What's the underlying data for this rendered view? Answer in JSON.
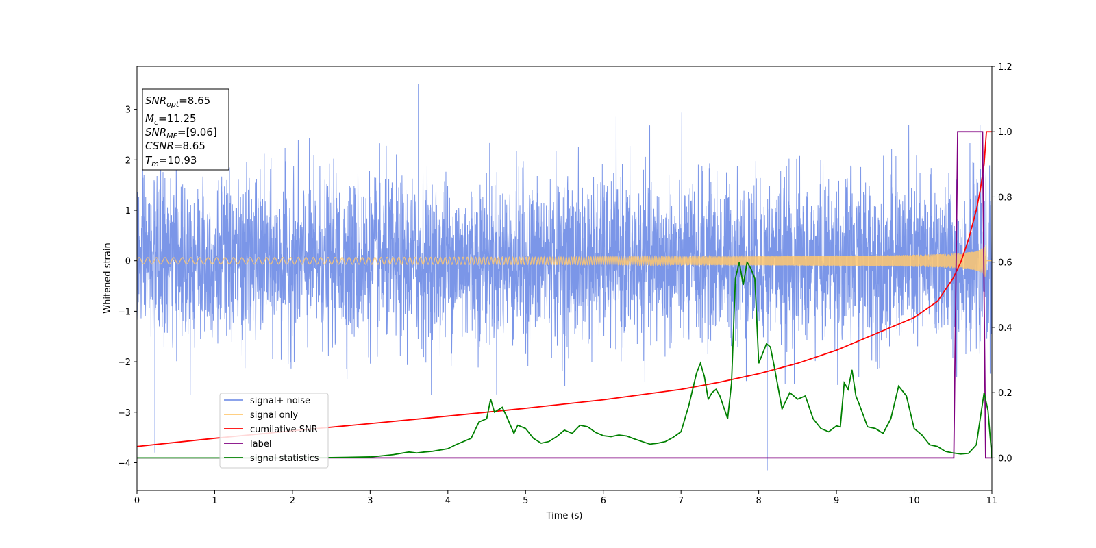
{
  "chart_data": {
    "type": "line",
    "xlabel": "Time (s)",
    "ylabel": "Whitened strain",
    "xlim": [
      0,
      11
    ],
    "ylim_left": [
      -4.55,
      3.85
    ],
    "ylim_right": [
      -0.1,
      1.2
    ],
    "x_ticks": [
      0,
      1,
      2,
      3,
      4,
      5,
      6,
      7,
      8,
      9,
      10,
      11
    ],
    "x_tick_labels": [
      "0",
      "1",
      "2",
      "3",
      "4",
      "5",
      "6",
      "7",
      "8",
      "9",
      "10",
      "11"
    ],
    "y_left_ticks": [
      -4,
      -3,
      -2,
      -1,
      0,
      1,
      2,
      3
    ],
    "y_left_tick_labels": [
      "−4",
      "−3",
      "−2",
      "−1",
      "0",
      "1",
      "2",
      "3"
    ],
    "y_right_ticks": [
      0.0,
      0.2,
      0.4,
      0.6,
      0.8,
      1.0,
      1.2
    ],
    "y_right_tick_labels": [
      "0.0",
      "0.2",
      "0.4",
      "0.6",
      "0.8",
      "1.0",
      "1.2"
    ],
    "info_box": {
      "snr_opt": {
        "name": "SNR",
        "sub": "opt",
        "value": "=8.65"
      },
      "mc": {
        "name": "M",
        "sub": "c",
        "value": "=11.25"
      },
      "snr_mf": {
        "name": "SNR",
        "sub": "MF",
        "value": "=[9.06]"
      },
      "csnr": {
        "name": "CSNR",
        "value": "=8.65"
      },
      "tm": {
        "name": "T",
        "sub": "m",
        "value": "=10.93"
      }
    },
    "legend": {
      "position": "lower-left",
      "entries": [
        {
          "label": "signal+ noise",
          "color": "#7b96e8"
        },
        {
          "label": "signal only",
          "color": "#ffc870"
        },
        {
          "label": "cumilative SNR",
          "color": "#ff0000"
        },
        {
          "label": "label",
          "color": "#800080"
        },
        {
          "label": "signal statistics",
          "color": "#008000"
        }
      ]
    },
    "series": [
      {
        "name": "signal+ noise",
        "axis": "left",
        "color": "#7b96e8",
        "style": "dense gaussian noise, sigma ~0.8",
        "range": [
          -4.15,
          3.5
        ],
        "notable_extremes": [
          [
            0.23,
            -3.8
          ],
          [
            3.62,
            3.5
          ],
          [
            8.11,
            -4.15
          ]
        ]
      },
      {
        "name": "signal only",
        "axis": "left",
        "color": "#ffc870",
        "style": "chirp",
        "t_merger": 10.93,
        "amplitude_at_10s": 0.12,
        "amplitude_near_merger": 0.55
      },
      {
        "name": "cumilative SNR",
        "axis": "right",
        "color": "#ff0000",
        "x": [
          0,
          1,
          2,
          3,
          4,
          5,
          6,
          7,
          7.5,
          8,
          8.5,
          9,
          9.5,
          10,
          10.3,
          10.5,
          10.6,
          10.7,
          10.8,
          10.85,
          10.9,
          10.93,
          11
        ],
        "y": [
          0.035,
          0.06,
          0.083,
          0.105,
          0.128,
          0.152,
          0.178,
          0.21,
          0.232,
          0.258,
          0.29,
          0.33,
          0.38,
          0.43,
          0.48,
          0.55,
          0.6,
          0.67,
          0.76,
          0.82,
          0.9,
          1.0,
          1.0
        ]
      },
      {
        "name": "label",
        "axis": "right",
        "color": "#800080",
        "x": [
          0,
          10.51,
          10.56,
          10.88,
          10.92,
          11
        ],
        "y": [
          0,
          0,
          1,
          1,
          0,
          0
        ]
      },
      {
        "name": "signal statistics",
        "axis": "right",
        "color": "#008000",
        "x": [
          0,
          1,
          2,
          2.5,
          3,
          3.1,
          3.3,
          3.5,
          3.6,
          3.7,
          3.8,
          4,
          4.1,
          4.2,
          4.3,
          4.4,
          4.5,
          4.55,
          4.6,
          4.7,
          4.75,
          4.85,
          4.9,
          5,
          5.1,
          5.2,
          5.3,
          5.4,
          5.5,
          5.6,
          5.7,
          5.8,
          5.9,
          6,
          6.1,
          6.2,
          6.3,
          6.4,
          6.5,
          6.6,
          6.7,
          6.8,
          6.9,
          7,
          7.1,
          7.2,
          7.25,
          7.3,
          7.35,
          7.4,
          7.45,
          7.5,
          7.6,
          7.65,
          7.7,
          7.75,
          7.8,
          7.85,
          7.9,
          7.95,
          8,
          8.05,
          8.1,
          8.15,
          8.2,
          8.3,
          8.4,
          8.5,
          8.6,
          8.7,
          8.8,
          8.9,
          9,
          9.05,
          9.1,
          9.15,
          9.2,
          9.25,
          9.3,
          9.4,
          9.5,
          9.6,
          9.7,
          9.8,
          9.9,
          10,
          10.1,
          10.2,
          10.3,
          10.4,
          10.5,
          10.6,
          10.7,
          10.8,
          10.9,
          10.95,
          11
        ],
        "y": [
          0,
          0,
          0,
          0.001,
          0.003,
          0.005,
          0.01,
          0.018,
          0.015,
          0.018,
          0.02,
          0.028,
          0.04,
          0.05,
          0.06,
          0.11,
          0.12,
          0.18,
          0.14,
          0.155,
          0.13,
          0.075,
          0.1,
          0.09,
          0.06,
          0.045,
          0.05,
          0.065,
          0.085,
          0.075,
          0.1,
          0.095,
          0.078,
          0.068,
          0.065,
          0.07,
          0.067,
          0.058,
          0.05,
          0.042,
          0.045,
          0.05,
          0.063,
          0.08,
          0.16,
          0.26,
          0.29,
          0.25,
          0.18,
          0.2,
          0.21,
          0.19,
          0.12,
          0.23,
          0.55,
          0.6,
          0.53,
          0.6,
          0.58,
          0.55,
          0.29,
          0.32,
          0.35,
          0.34,
          0.28,
          0.15,
          0.2,
          0.18,
          0.19,
          0.12,
          0.09,
          0.08,
          0.098,
          0.095,
          0.23,
          0.21,
          0.27,
          0.19,
          0.16,
          0.095,
          0.09,
          0.075,
          0.12,
          0.22,
          0.19,
          0.09,
          0.07,
          0.04,
          0.035,
          0.02,
          0.015,
          0.012,
          0.014,
          0.04,
          0.2,
          0.145,
          0.0
        ]
      }
    ]
  }
}
